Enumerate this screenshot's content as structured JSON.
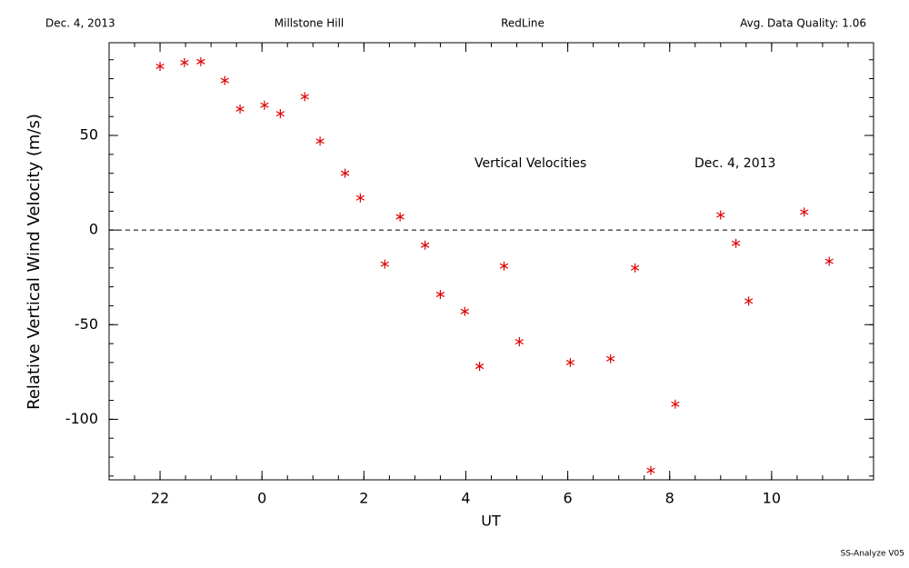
{
  "header": {
    "date": "Dec. 4, 2013",
    "site": "Millstone Hill",
    "line": "RedLine",
    "quality": "Avg. Data Quality: 1.06"
  },
  "footer": "SS-Analyze V05",
  "chart_data": {
    "type": "scatter",
    "xlabel": "UT",
    "ylabel": "Relative Vertical Wind Velocity (m/s)",
    "annotations": [
      "Vertical Velocities",
      "Dec. 4, 2013"
    ],
    "xlim": [
      -3,
      12
    ],
    "ylim": [
      -132,
      99
    ],
    "xticks": [
      {
        "value": -2,
        "label": "22"
      },
      0,
      2,
      4,
      6,
      8,
      10
    ],
    "yticks": [
      -100,
      -50,
      0,
      50
    ],
    "xminor": 0.5,
    "yminor": 10,
    "hline": 0,
    "series": [
      {
        "name": "Vertical Velocities",
        "color": "#e00000",
        "x": [
          -2.0,
          -1.52,
          -1.2,
          -0.73,
          -0.43,
          0.05,
          0.36,
          0.84,
          1.14,
          1.63,
          1.93,
          2.41,
          2.71,
          3.2,
          3.5,
          3.98,
          4.27,
          4.75,
          5.05,
          6.05,
          6.84,
          7.32,
          7.63,
          8.11,
          9.0,
          9.3,
          9.55,
          10.64,
          11.13
        ],
        "values": [
          86.5,
          88.5,
          89,
          79,
          64,
          66,
          61.5,
          70.5,
          47,
          30,
          17,
          -18,
          7,
          -8,
          -34,
          -43,
          -72,
          -19,
          -59,
          -70,
          -68,
          -20,
          -127,
          -92,
          8,
          -7,
          -37.5,
          9.5,
          -16.5
        ]
      }
    ]
  }
}
